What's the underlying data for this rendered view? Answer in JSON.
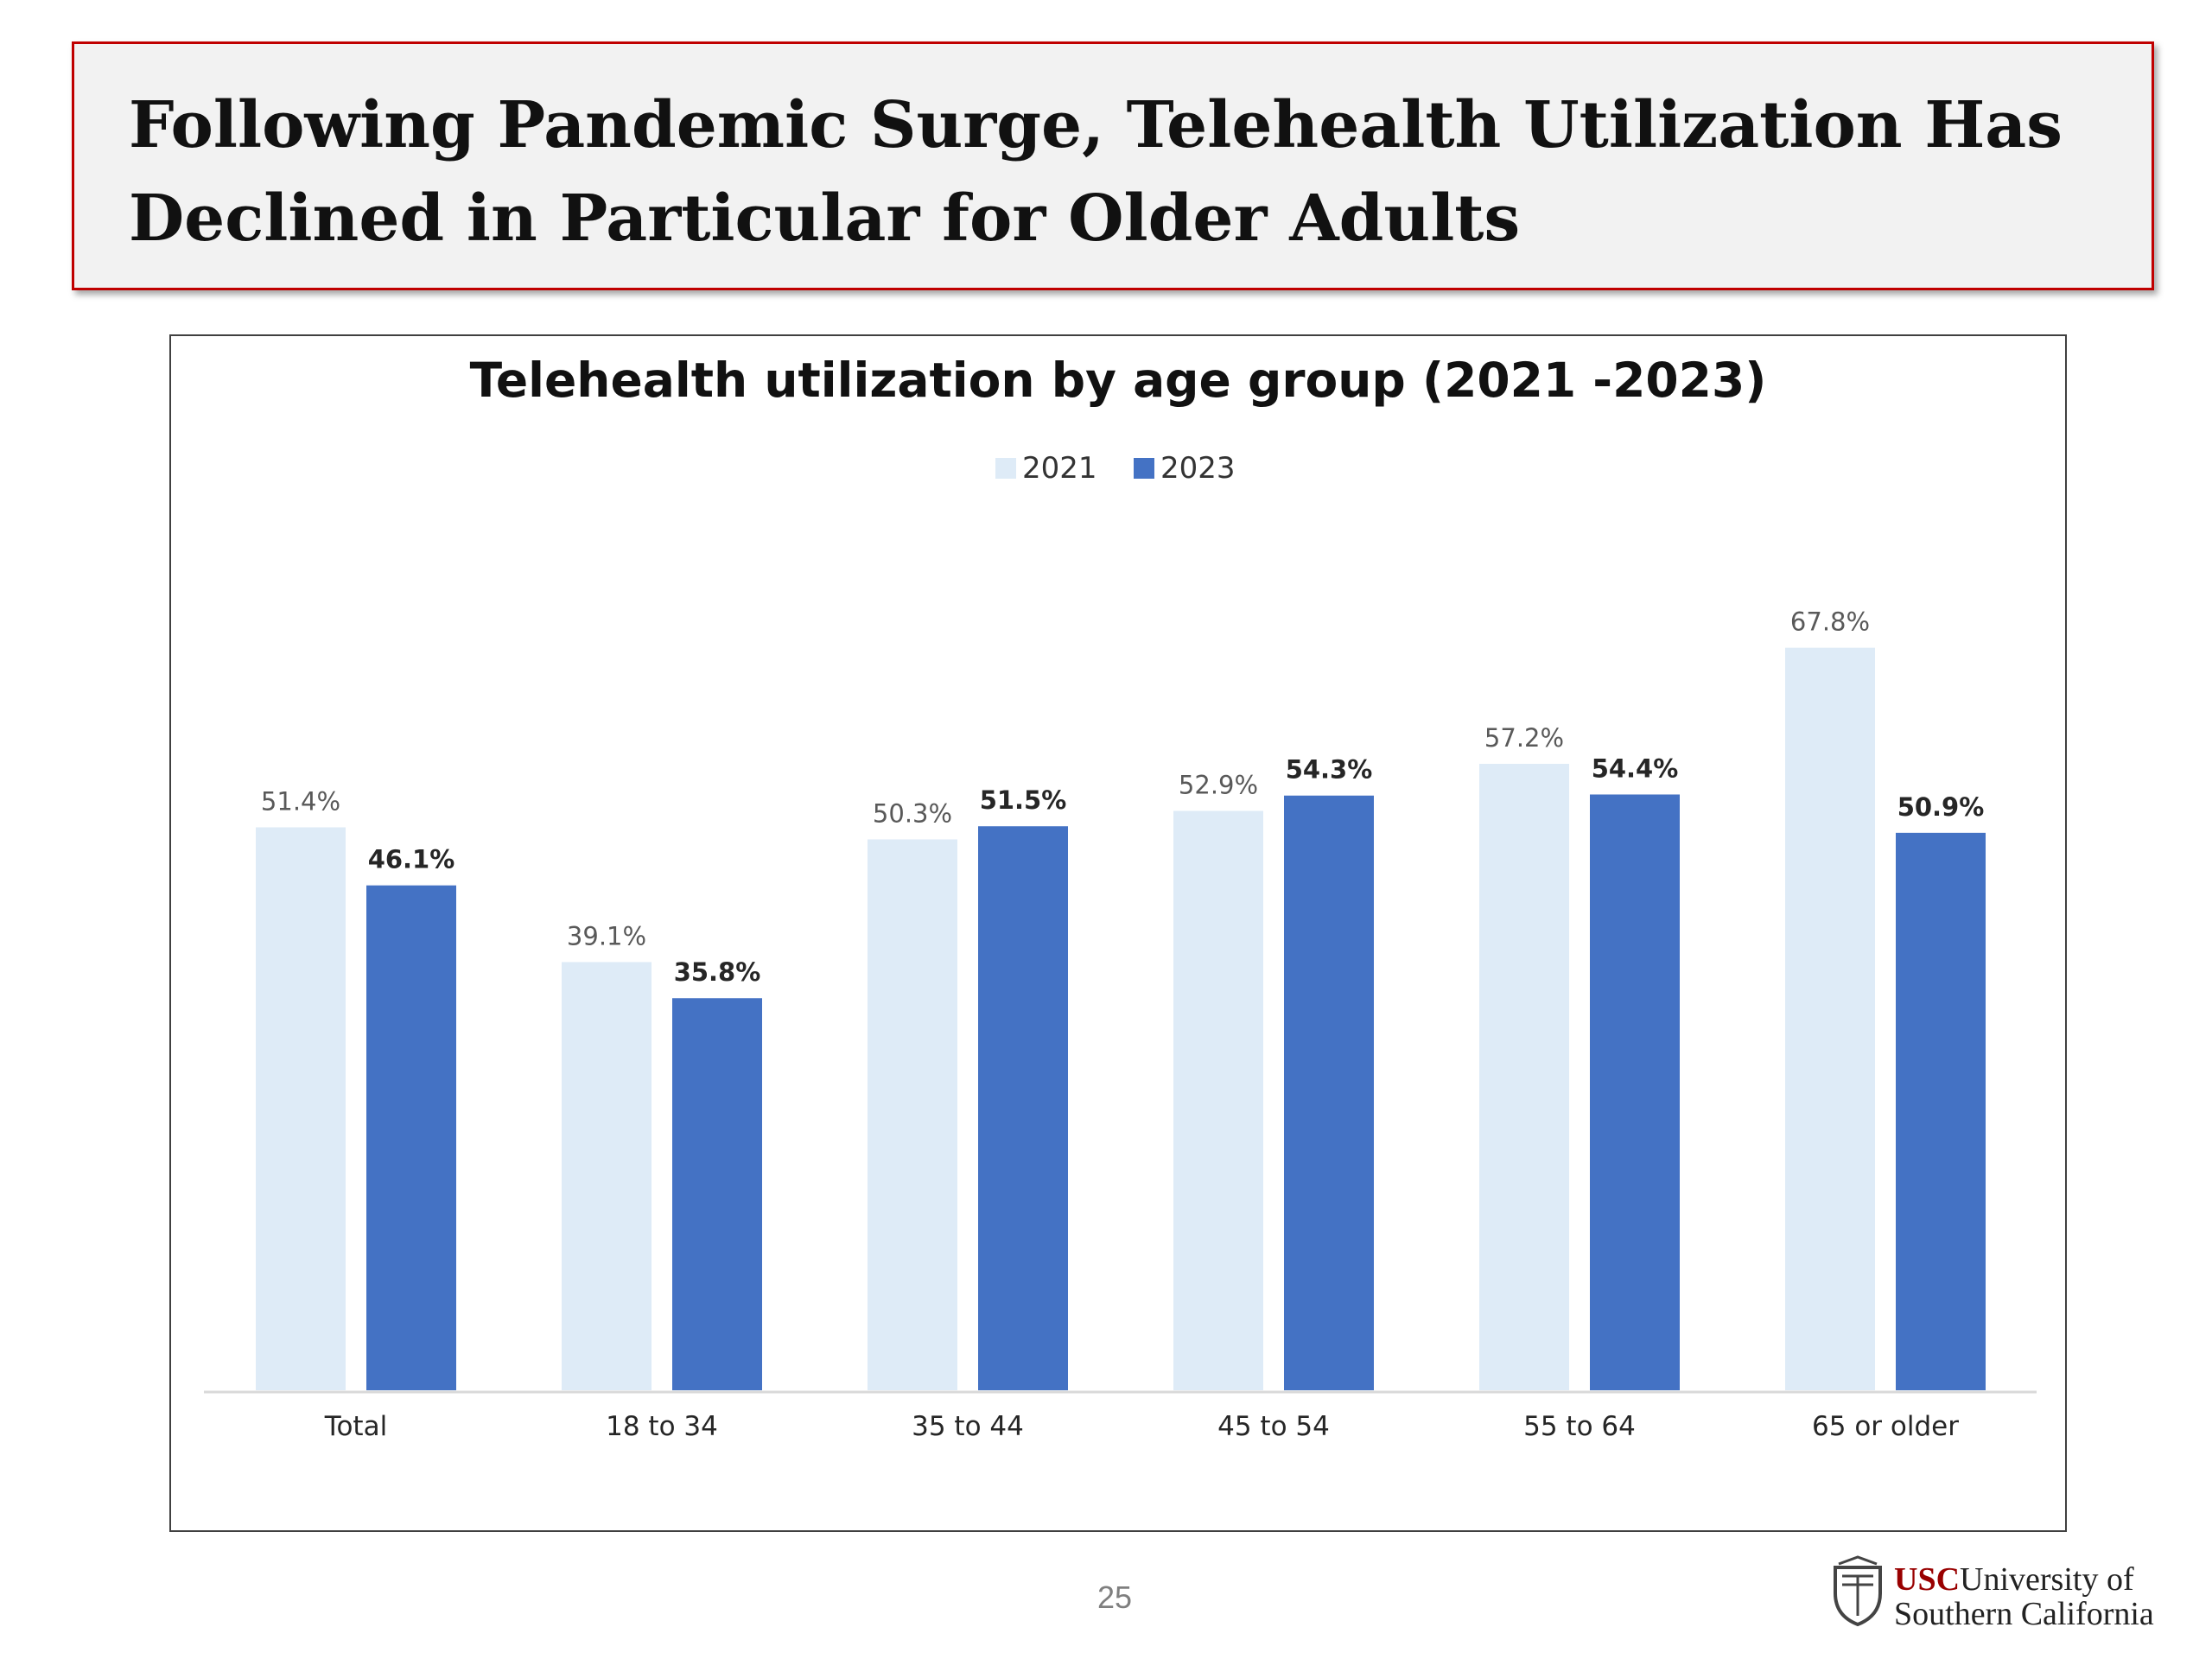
{
  "slide": {
    "title": "Following Pandemic Surge, Telehealth Utilization Has Declined in Particular for Older Adults",
    "page_number": "25",
    "logo": {
      "usc": "USC",
      "line1_rest": "University of",
      "line2": "Southern California",
      "icon": "usc-seal-icon"
    }
  },
  "colors": {
    "header_border": "#c00000",
    "header_bg": "#f2f2f2",
    "series_2021": "#deebf7",
    "series_2023": "#4472c4"
  },
  "chart_data": {
    "type": "bar",
    "title": "Telehealth utilization by age group (2021 -2023)",
    "categories": [
      "Total",
      "18 to 34",
      "35 to 44",
      "45 to 54",
      "55 to 64",
      "65 or older"
    ],
    "series": [
      {
        "name": "2021",
        "values": [
          51.4,
          39.1,
          50.3,
          52.9,
          57.2,
          67.8
        ],
        "labels": [
          "51.4%",
          "39.1%",
          "50.3%",
          "52.9%",
          "57.2%",
          "67.8%"
        ],
        "color": "#deebf7"
      },
      {
        "name": "2023",
        "values": [
          46.1,
          35.8,
          51.5,
          54.3,
          54.4,
          50.9
        ],
        "labels": [
          "46.1%",
          "35.8%",
          "51.5%",
          "54.3%",
          "54.4%",
          "50.9%"
        ],
        "color": "#4472c4"
      }
    ],
    "unit": "%",
    "ylim": [
      0,
      80
    ],
    "grid": false,
    "legend": "top-center",
    "xlabel": "",
    "ylabel": ""
  }
}
